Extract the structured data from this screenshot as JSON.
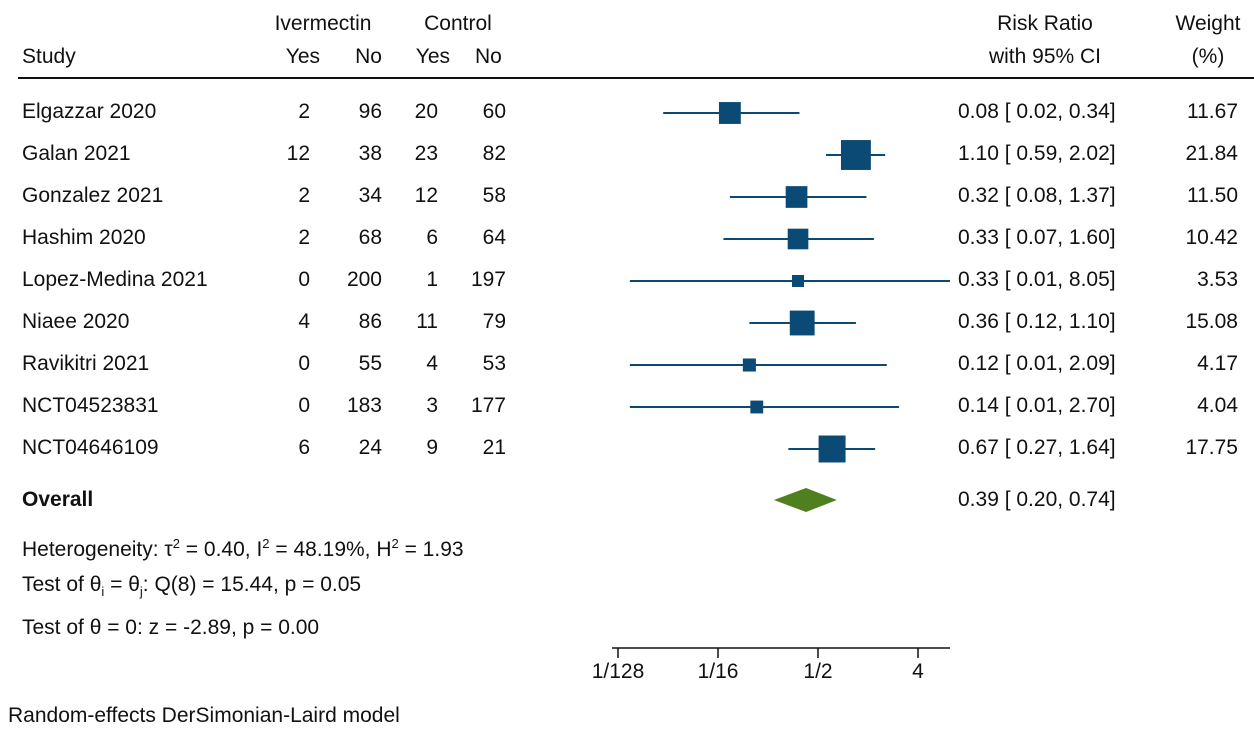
{
  "header": {
    "study": "Study",
    "treatment_group": "Ivermectin",
    "control_group": "Control",
    "yes": "Yes",
    "no": "No",
    "effect_line1": "Risk Ratio",
    "effect_line2": "with 95% CI",
    "weight_line1": "Weight",
    "weight_line2": "(%)"
  },
  "rows": [
    {
      "study": "Elgazzar 2020",
      "t_yes": "2",
      "t_no": "96",
      "c_yes": "20",
      "c_no": "60",
      "ci_text": "0.08 [ 0.02,  0.34]",
      "weight": "11.67"
    },
    {
      "study": "Galan 2021",
      "t_yes": "12",
      "t_no": "38",
      "c_yes": "23",
      "c_no": "82",
      "ci_text": "1.10 [ 0.59,  2.02]",
      "weight": "21.84"
    },
    {
      "study": "Gonzalez 2021",
      "t_yes": "2",
      "t_no": "34",
      "c_yes": "12",
      "c_no": "58",
      "ci_text": "0.32 [ 0.08,  1.37]",
      "weight": "11.50"
    },
    {
      "study": "Hashim 2020",
      "t_yes": "2",
      "t_no": "68",
      "c_yes": "6",
      "c_no": "64",
      "ci_text": "0.33 [ 0.07,  1.60]",
      "weight": "10.42"
    },
    {
      "study": "Lopez-Medina 2021",
      "t_yes": "0",
      "t_no": "200",
      "c_yes": "1",
      "c_no": "197",
      "ci_text": "0.33 [ 0.01,  8.05]",
      "weight": "3.53"
    },
    {
      "study": "Niaee 2020",
      "t_yes": "4",
      "t_no": "86",
      "c_yes": "11",
      "c_no": "79",
      "ci_text": "0.36 [ 0.12,  1.10]",
      "weight": "15.08"
    },
    {
      "study": "Ravikitri 2021",
      "t_yes": "0",
      "t_no": "55",
      "c_yes": "4",
      "c_no": "53",
      "ci_text": "0.12 [ 0.01,  2.09]",
      "weight": "4.17"
    },
    {
      "study": "NCT04523831",
      "t_yes": "0",
      "t_no": "183",
      "c_yes": "3",
      "c_no": "177",
      "ci_text": "0.14 [ 0.01,  2.70]",
      "weight": "4.04"
    },
    {
      "study": "NCT04646109",
      "t_yes": "6",
      "t_no": "24",
      "c_yes": "9",
      "c_no": "21",
      "ci_text": "0.67 [ 0.27,  1.64]",
      "weight": "17.75"
    }
  ],
  "overall": {
    "label": "Overall",
    "ci_text": "0.39 [ 0.20,  0.74]"
  },
  "stats": {
    "heterogeneity_prefix": "Heterogeneity: ",
    "tau_symbol": "τ",
    "tau_value": " = 0.40, ",
    "i_symbol": "I",
    "i_value": " = 48.19%, ",
    "h_symbol": "H",
    "h_value": " = 1.93",
    "sup2": "2",
    "test1_prefix": "Test of ",
    "theta": "θ",
    "sub_i": "i",
    "equals": " = ",
    "sub_j": "j",
    "test1_value": ": Q(8) = 15.44, p = 0.05",
    "test2": "Test of θ = 0: z = -2.89, p = 0.00"
  },
  "footnote": "Random-effects DerSimonian-Laird model",
  "colors": {
    "marker": "#0b4a75",
    "diamond": "#4f7f1e",
    "text": "#111111"
  },
  "chart_data": {
    "type": "forest",
    "x_scale": "log2",
    "x_ticks": [
      {
        "value": 0.0078125,
        "label": "1/128"
      },
      {
        "value": 0.0625,
        "label": "1/16"
      },
      {
        "value": 0.5,
        "label": "1/2"
      },
      {
        "value": 4,
        "label": "4"
      }
    ],
    "studies": [
      {
        "study": "Elgazzar 2020",
        "rr": 0.08,
        "lower": 0.02,
        "upper": 0.34,
        "weight": 11.67
      },
      {
        "study": "Galan 2021",
        "rr": 1.1,
        "lower": 0.59,
        "upper": 2.02,
        "weight": 21.84
      },
      {
        "study": "Gonzalez 2021",
        "rr": 0.32,
        "lower": 0.08,
        "upper": 1.37,
        "weight": 11.5
      },
      {
        "study": "Hashim 2020",
        "rr": 0.33,
        "lower": 0.07,
        "upper": 1.6,
        "weight": 10.42
      },
      {
        "study": "Lopez-Medina 2021",
        "rr": 0.33,
        "lower": 0.01,
        "upper": 8.05,
        "weight": 3.53
      },
      {
        "study": "Niaee 2020",
        "rr": 0.36,
        "lower": 0.12,
        "upper": 1.1,
        "weight": 15.08
      },
      {
        "study": "Ravikitri 2021",
        "rr": 0.12,
        "lower": 0.01,
        "upper": 2.09,
        "weight": 4.17
      },
      {
        "study": "NCT04523831",
        "rr": 0.14,
        "lower": 0.01,
        "upper": 2.7,
        "weight": 4.04
      },
      {
        "study": "NCT04646109",
        "rr": 0.67,
        "lower": 0.27,
        "upper": 1.64,
        "weight": 17.75
      }
    ],
    "overall": {
      "rr": 0.39,
      "lower": 0.2,
      "upper": 0.74
    }
  }
}
